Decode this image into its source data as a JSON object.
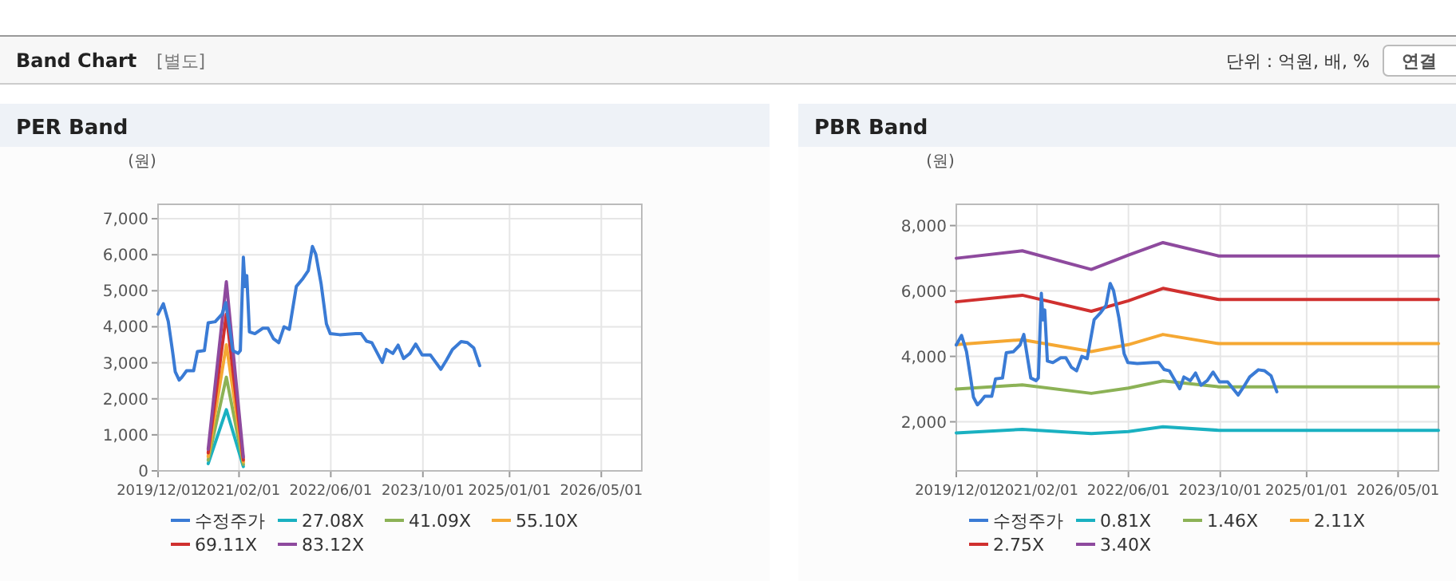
{
  "chart_data": [
    {
      "type": "line",
      "title": "PER Band",
      "ylabel": "(원)",
      "annotations": [
        "Band Chart",
        "[별도]",
        "단위 : 억원, 배, %",
        "연결"
      ],
      "xlim": [
        "2019-12-01",
        "2026-12-01"
      ],
      "xticks": [
        {
          "value": "2019-12-01",
          "label": "2019/12/01"
        },
        {
          "value": "2021-02-01",
          "label": "2021/02/01"
        },
        {
          "value": "2022-06-01",
          "label": "2022/06/01"
        },
        {
          "value": "2023-10-01",
          "label": "2023/10/01"
        },
        {
          "value": "2025-01-01",
          "label": "2025/01/01"
        },
        {
          "value": "2026-05-01",
          "label": "2026/05/01"
        }
      ],
      "ylim": [
        0,
        7400
      ],
      "yticks": [
        0,
        {
          "value": 1000,
          "label": "1,000"
        },
        {
          "value": 2000,
          "label": "2,000"
        },
        {
          "value": 3000,
          "label": "3,000"
        },
        {
          "value": 4000,
          "label": "4,000"
        },
        {
          "value": 5000,
          "label": "5,000"
        },
        {
          "value": 6000,
          "label": "6,000"
        },
        {
          "value": 7000,
          "label": "7,000"
        }
      ],
      "grid": true,
      "legend": "bottom",
      "x": [
        "2019-12-01",
        "2019-12-29",
        "2020-01-24",
        "2020-02-15",
        "2020-03-01",
        "2020-03-22",
        "2020-04-05",
        "2020-04-30",
        "2020-06-06",
        "2020-06-26",
        "2020-08-02",
        "2020-08-22",
        "2020-09-28",
        "2020-11-03",
        "2020-11-23",
        "2020-12-30",
        "2021-01-27",
        "2021-02-08",
        "2021-02-24",
        "2021-03-05",
        "2021-03-14",
        "2021-03-28",
        "2021-04-26",
        "2021-06-07",
        "2021-07-04",
        "2021-08-02",
        "2021-08-30",
        "2021-09-27",
        "2021-10-25",
        "2021-12-01",
        "2022-01-05",
        "2022-02-02",
        "2022-02-24",
        "2022-03-14",
        "2022-04-11",
        "2022-05-09",
        "2022-05-29",
        "2022-07-18",
        "2022-10-11",
        "2022-11-09",
        "2022-12-07",
        "2023-01-04",
        "2023-02-28",
        "2023-03-22",
        "2023-04-25",
        "2023-05-23",
        "2023-06-21",
        "2023-07-24",
        "2023-08-24",
        "2023-09-27",
        "2023-11-09",
        "2024-01-04",
        "2024-02-02",
        "2024-03-05",
        "2024-04-20",
        "2024-05-23",
        "2024-06-26",
        "2024-07-27"
      ],
      "series": [
        {
          "name": "수정주가",
          "color": "#3a7bd5",
          "values": [
            4350,
            4640,
            4150,
            3340,
            2750,
            2520,
            2600,
            2780,
            2780,
            3310,
            3340,
            4110,
            4140,
            4350,
            4670,
            3340,
            3260,
            3340,
            5930,
            5120,
            5420,
            3860,
            3810,
            3960,
            3960,
            3670,
            3560,
            4000,
            3930,
            5120,
            5340,
            5560,
            6230,
            6010,
            5190,
            4080,
            3810,
            3780,
            3810,
            3810,
            3600,
            3560,
            3010,
            3370,
            3260,
            3490,
            3120,
            3260,
            3520,
            3220,
            3220,
            2820,
            3070,
            3370,
            3590,
            3560,
            3410,
            2920
          ]
        },
        {
          "name": "27.08X",
          "color": "#1ab1c1",
          "x": [
            "2020-08-22",
            "2020-11-26",
            "2021-02-24"
          ],
          "values": [
            200,
            1700,
            120
          ]
        },
        {
          "name": "41.09X",
          "color": "#8cb256",
          "x": [
            "2020-08-22",
            "2020-11-26",
            "2021-02-24"
          ],
          "values": [
            300,
            2600,
            180
          ]
        },
        {
          "name": "55.10X",
          "color": "#f5a833",
          "x": [
            "2020-08-22",
            "2020-11-26",
            "2021-02-24"
          ],
          "values": [
            400,
            3500,
            250
          ]
        },
        {
          "name": "69.11X",
          "color": "#d0302f",
          "x": [
            "2020-08-22",
            "2020-11-26",
            "2021-02-24"
          ],
          "values": [
            500,
            4350,
            300
          ]
        },
        {
          "name": "83.12X",
          "color": "#8e4a9e",
          "x": [
            "2020-08-22",
            "2020-11-26",
            "2021-02-24"
          ],
          "values": [
            600,
            5250,
            380
          ]
        }
      ]
    },
    {
      "type": "line",
      "title": "PBR Band",
      "ylabel": "(원)",
      "xlim": [
        "2019-12-01",
        "2026-12-01"
      ],
      "xticks": [
        {
          "value": "2019-12-01",
          "label": "2019/12/01"
        },
        {
          "value": "2021-02-01",
          "label": "2021/02/01"
        },
        {
          "value": "2022-06-01",
          "label": "2022/06/01"
        },
        {
          "value": "2023-10-01",
          "label": "2023/10/01"
        },
        {
          "value": "2025-01-01",
          "label": "2025/01/01"
        },
        {
          "value": "2026-05-01",
          "label": "2026/05/01"
        }
      ],
      "ylim": [
        500,
        8650
      ],
      "yticks": [
        {
          "value": 2000,
          "label": "2,000"
        },
        {
          "value": 4000,
          "label": "4,000"
        },
        {
          "value": 6000,
          "label": "6,000"
        },
        {
          "value": 8000,
          "label": "8,000"
        }
      ],
      "grid": true,
      "legend": "bottom",
      "x": [
        "2019-12-01",
        "2019-12-29",
        "2020-01-24",
        "2020-02-15",
        "2020-03-01",
        "2020-03-22",
        "2020-04-05",
        "2020-04-30",
        "2020-06-06",
        "2020-06-26",
        "2020-08-02",
        "2020-08-22",
        "2020-09-28",
        "2020-11-03",
        "2020-11-23",
        "2020-12-30",
        "2021-01-27",
        "2021-02-08",
        "2021-02-24",
        "2021-03-05",
        "2021-03-14",
        "2021-03-28",
        "2021-04-26",
        "2021-06-07",
        "2021-07-04",
        "2021-08-02",
        "2021-08-30",
        "2021-09-27",
        "2021-10-25",
        "2021-12-01",
        "2022-01-05",
        "2022-02-02",
        "2022-02-24",
        "2022-03-14",
        "2022-04-11",
        "2022-05-09",
        "2022-05-29",
        "2022-07-18",
        "2022-10-11",
        "2022-11-09",
        "2022-12-07",
        "2023-01-04",
        "2023-02-28",
        "2023-03-22",
        "2023-04-25",
        "2023-05-23",
        "2023-06-21",
        "2023-07-24",
        "2023-08-24",
        "2023-09-27",
        "2023-11-09",
        "2024-01-04",
        "2024-02-02",
        "2024-03-05",
        "2024-04-20",
        "2024-05-23",
        "2024-06-26",
        "2024-07-27"
      ],
      "series": [
        {
          "name": "수정주가",
          "color": "#3a7bd5",
          "values": [
            4350,
            4640,
            4150,
            3340,
            2750,
            2520,
            2600,
            2780,
            2780,
            3310,
            3340,
            4110,
            4140,
            4350,
            4670,
            3340,
            3260,
            3340,
            5930,
            5120,
            5420,
            3860,
            3810,
            3960,
            3960,
            3670,
            3560,
            4000,
            3930,
            5120,
            5340,
            5560,
            6230,
            6010,
            5190,
            4080,
            3810,
            3780,
            3810,
            3810,
            3600,
            3560,
            3010,
            3370,
            3260,
            3490,
            3120,
            3260,
            3520,
            3220,
            3220,
            2820,
            3070,
            3370,
            3590,
            3560,
            3410,
            2920
          ]
        },
        {
          "name": "0.81X",
          "color": "#1ab1c1",
          "x": [
            "2019-12-01",
            "2020-11-15",
            "2021-11-16",
            "2022-06-01",
            "2022-12-01",
            "2023-09-23",
            "2026-12-01"
          ],
          "values": [
            1660,
            1770,
            1640,
            1700,
            1850,
            1740,
            1740
          ]
        },
        {
          "name": "1.46X",
          "color": "#8cb256",
          "x": [
            "2019-12-01",
            "2020-11-15",
            "2021-11-16",
            "2022-06-01",
            "2022-12-01",
            "2023-09-23",
            "2026-12-01"
          ],
          "values": [
            3000,
            3130,
            2870,
            3030,
            3250,
            3070,
            3070
          ]
        },
        {
          "name": "2.11X",
          "color": "#f5a833",
          "x": [
            "2019-12-01",
            "2020-11-15",
            "2021-11-16",
            "2022-06-01",
            "2022-12-01",
            "2023-09-23",
            "2026-12-01"
          ],
          "values": [
            4360,
            4510,
            4150,
            4360,
            4670,
            4390,
            4390
          ]
        },
        {
          "name": "2.75X",
          "color": "#d0302f",
          "x": [
            "2019-12-01",
            "2020-11-15",
            "2021-11-16",
            "2022-06-01",
            "2022-12-01",
            "2023-09-23",
            "2026-12-01"
          ],
          "values": [
            5670,
            5870,
            5380,
            5700,
            6080,
            5740,
            5740
          ]
        },
        {
          "name": "3.40X",
          "color": "#8e4a9e",
          "x": [
            "2019-12-01",
            "2020-11-15",
            "2021-11-16",
            "2022-06-01",
            "2022-12-01",
            "2023-09-23",
            "2026-12-01"
          ],
          "values": [
            7000,
            7230,
            6660,
            7100,
            7480,
            7070,
            7070
          ]
        }
      ]
    }
  ]
}
